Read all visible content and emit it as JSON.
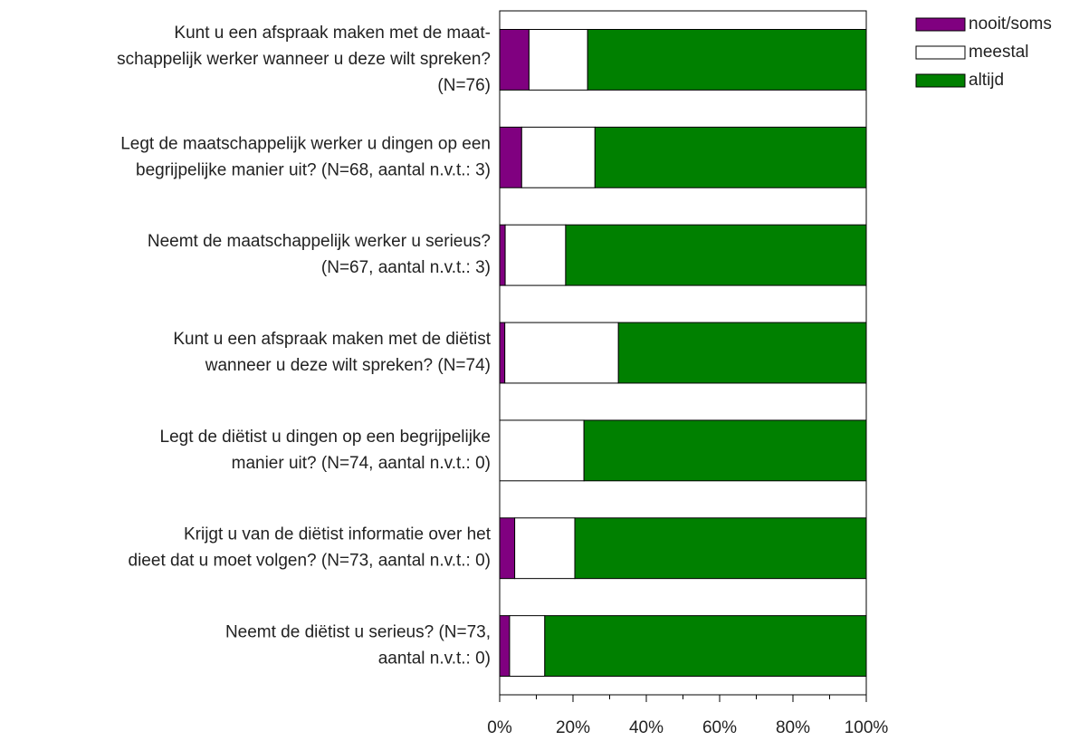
{
  "chart_data": {
    "type": "bar",
    "orientation": "horizontal",
    "stacked": true,
    "categories": [
      "Kunt u een afspraak maken met de maat-\nschappelijk werker wanneer u deze wilt spreken?\n(N=76)",
      "Legt de maatschappelijk werker u dingen op een\nbegrijpelijke manier uit? (N=68, aantal n.v.t.: 3)",
      "Neemt de maatschappelijk werker u serieus?\n(N=67, aantal n.v.t.: 3)",
      "Kunt u een afspraak maken met de diëtist\nwanneer u deze wilt spreken? (N=74)",
      "Legt de diëtist u dingen op een begrijpelijke\nmanier uit? (N=74, aantal n.v.t.: 0)",
      "Krijgt u van de diëtist informatie over het\ndieet dat u moet volgen? (N=73, aantal n.v.t.: 0)",
      "Neemt de diëtist u serieus? (N=73,\naantal n.v.t.: 0)"
    ],
    "series": [
      {
        "name": "nooit/soms",
        "color": "#800080",
        "values": [
          8,
          6,
          1.5,
          1.4,
          0,
          4.1,
          2.7
        ]
      },
      {
        "name": "meestal",
        "color": "#ffffff",
        "values": [
          16,
          20,
          16.5,
          31,
          23,
          16.4,
          9.6
        ]
      },
      {
        "name": "altijd",
        "color": "#008000",
        "values": [
          76,
          74,
          82,
          67.6,
          77,
          79.5,
          87.7
        ]
      }
    ],
    "xlim": [
      0,
      100
    ],
    "xticks": [
      {
        "value": 0,
        "label": "0%"
      },
      {
        "value": 20,
        "label": "20%"
      },
      {
        "value": 40,
        "label": "40%"
      },
      {
        "value": 60,
        "label": "60%"
      },
      {
        "value": 80,
        "label": "80%"
      },
      {
        "value": 100,
        "label": "100%"
      }
    ],
    "legend": "top-right"
  }
}
